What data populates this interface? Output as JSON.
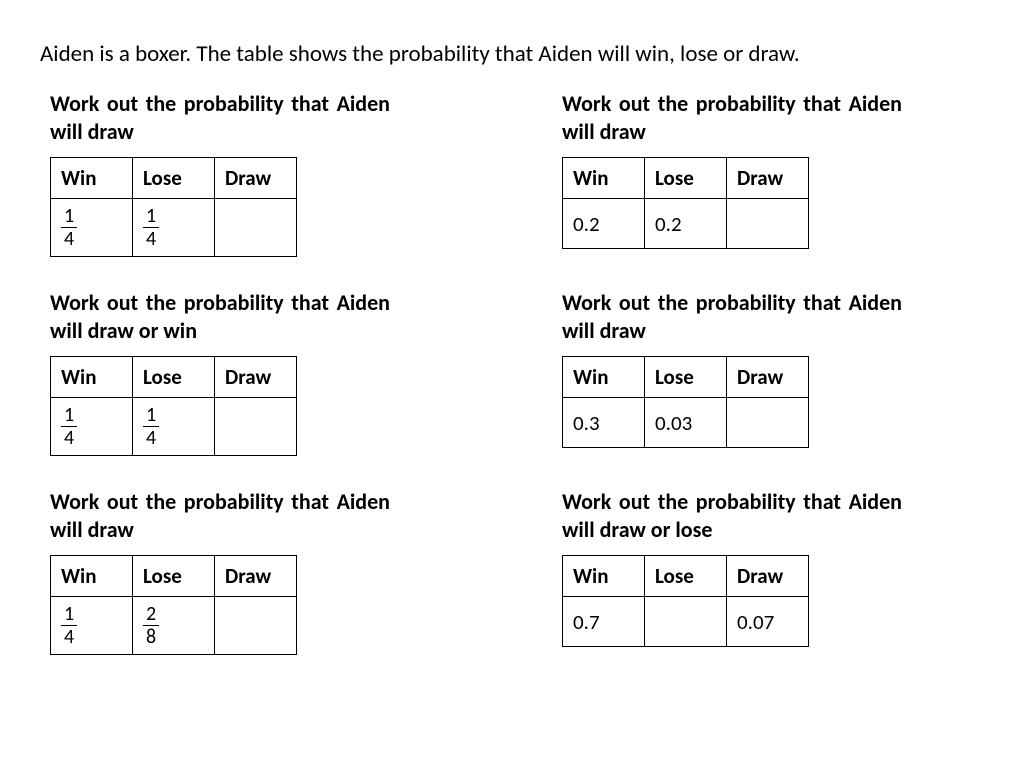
{
  "intro": "Aiden is a boxer. The table shows the probability that Aiden will win, lose or draw.",
  "headers": {
    "win": "Win",
    "lose": "Lose",
    "draw": "Draw"
  },
  "problems": [
    {
      "prompt": "Work out the probability that Aiden will draw",
      "win_type": "frac",
      "win_num": "1",
      "win_den": "4",
      "lose_type": "frac",
      "lose_num": "1",
      "lose_den": "4",
      "draw_type": "blank"
    },
    {
      "prompt": "Work out the probability that Aiden will draw",
      "win_type": "dec",
      "win_val": "0.2",
      "lose_type": "dec",
      "lose_val": "0.2",
      "draw_type": "blank"
    },
    {
      "prompt": "Work out the probability that Aiden will draw or win",
      "win_type": "frac",
      "win_num": "1",
      "win_den": "4",
      "lose_type": "frac",
      "lose_num": "1",
      "lose_den": "4",
      "draw_type": "blank"
    },
    {
      "prompt": "Work out the probability that Aiden will draw",
      "win_type": "dec",
      "win_val": "0.3",
      "lose_type": "dec",
      "lose_val": "0.03",
      "draw_type": "blank"
    },
    {
      "prompt": "Work out the probability that Aiden will draw",
      "win_type": "frac",
      "win_num": "1",
      "win_den": "4",
      "lose_type": "frac",
      "lose_num": "2",
      "lose_den": "8",
      "draw_type": "blank"
    },
    {
      "prompt": "Work out the probability that Aiden will draw or lose",
      "win_type": "dec",
      "win_val": "0.7",
      "lose_type": "blank",
      "draw_type": "dec",
      "draw_val": "0.07"
    }
  ]
}
